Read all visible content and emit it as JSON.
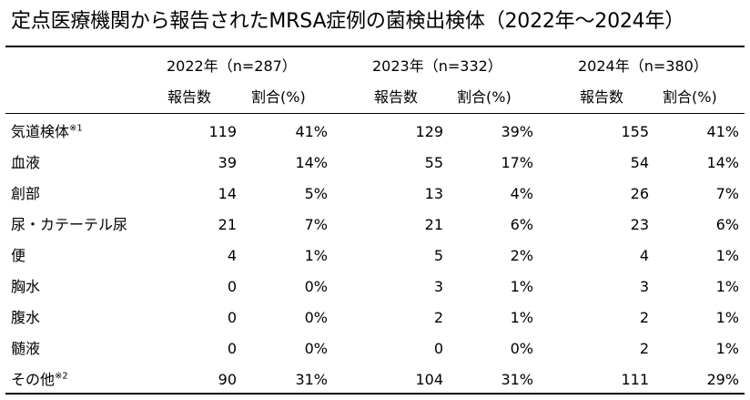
{
  "title": "定点医療機関から報告されたMRSA症例の菌検出検体（2022年～2024年）",
  "columns": [
    {
      "year_label": "2022年（n=287）",
      "count_label": "報告数",
      "ratio_label": "割合(%)"
    },
    {
      "year_label": "2023年（n=332）",
      "count_label": "報告数",
      "ratio_label": "割合(%)"
    },
    {
      "year_label": "2024年（n=380）",
      "count_label": "報告数",
      "ratio_label": "割合(%)"
    }
  ],
  "rows": [
    {
      "label": "気道検体",
      "note": "※1",
      "c2022": "119",
      "p2022": "41%",
      "c2023": "129",
      "p2023": "39%",
      "c2024": "155",
      "p2024": "41%"
    },
    {
      "label": "血液",
      "note": "",
      "c2022": "39",
      "p2022": "14%",
      "c2023": "55",
      "p2023": "17%",
      "c2024": "54",
      "p2024": "14%"
    },
    {
      "label": "創部",
      "note": "",
      "c2022": "14",
      "p2022": "5%",
      "c2023": "13",
      "p2023": "4%",
      "c2024": "26",
      "p2024": "7%"
    },
    {
      "label": "尿・カテーテル尿",
      "note": "",
      "c2022": "21",
      "p2022": "7%",
      "c2023": "21",
      "p2023": "6%",
      "c2024": "23",
      "p2024": "6%"
    },
    {
      "label": "便",
      "note": "",
      "c2022": "4",
      "p2022": "1%",
      "c2023": "5",
      "p2023": "2%",
      "c2024": "4",
      "p2024": "1%"
    },
    {
      "label": "胸水",
      "note": "",
      "c2022": "0",
      "p2022": "0%",
      "c2023": "3",
      "p2023": "1%",
      "c2024": "3",
      "p2024": "1%"
    },
    {
      "label": "腹水",
      "note": "",
      "c2022": "0",
      "p2022": "0%",
      "c2023": "2",
      "p2023": "1%",
      "c2024": "2",
      "p2024": "1%"
    },
    {
      "label": "髄液",
      "note": "",
      "c2022": "0",
      "p2022": "0%",
      "c2023": "0",
      "p2023": "0%",
      "c2024": "2",
      "p2024": "1%"
    },
    {
      "label": "その他",
      "note": "※2",
      "c2022": "90",
      "p2022": "31%",
      "c2023": "104",
      "p2023": "31%",
      "c2024": "111",
      "p2024": "29%"
    }
  ]
}
